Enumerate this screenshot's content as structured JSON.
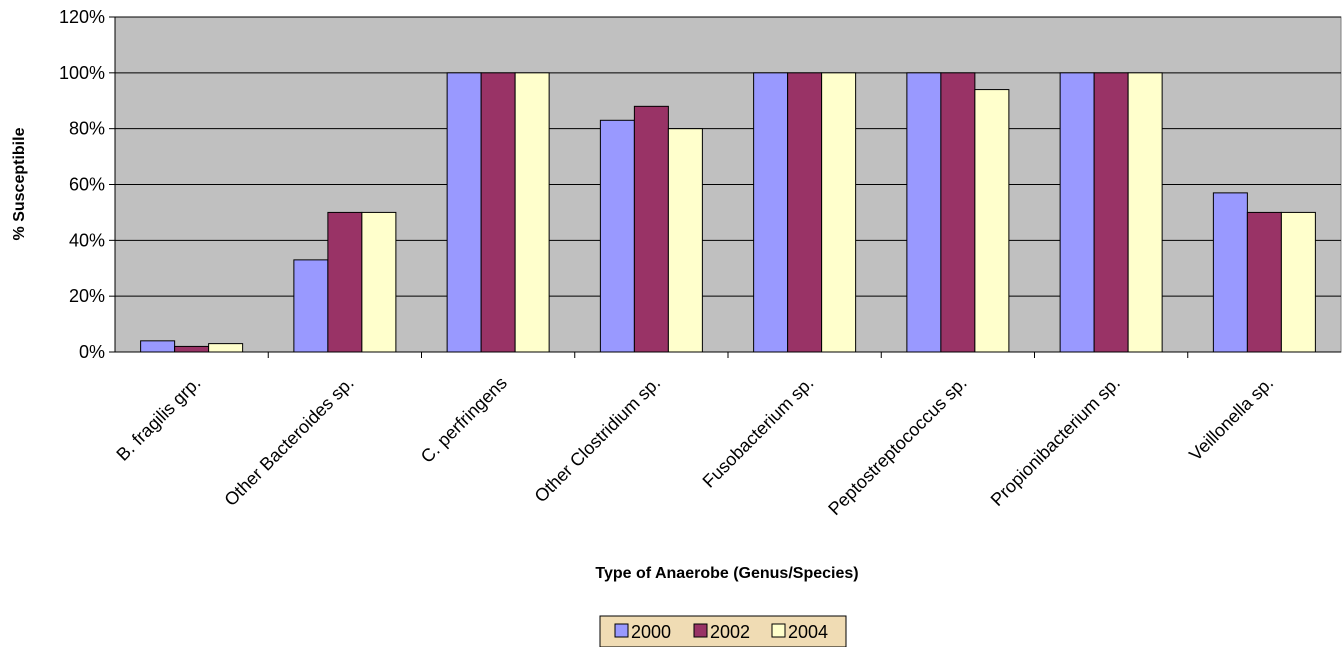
{
  "chart_data": {
    "type": "bar",
    "title": "",
    "xlabel": "Type of Anaerobe (Genus/Species)",
    "ylabel": "% Susceptibile",
    "ylim": [
      0,
      120
    ],
    "y_ticks": [
      "0%",
      "20%",
      "40%",
      "60%",
      "80%",
      "100%",
      "120%"
    ],
    "y_tick_values": [
      0,
      20,
      40,
      60,
      80,
      100,
      120
    ],
    "categories": [
      "B. fragilis grp.",
      "Other Bacteroides sp.",
      "C. perfringens",
      "Other Clostridium sp.",
      "Fusobacterium sp.",
      "Peptostreptococcus sp.",
      "Propionibacterium sp.",
      "Veillonella sp."
    ],
    "series": [
      {
        "name": "2000",
        "color": "#9999FF",
        "values": [
          4,
          33,
          100,
          83,
          100,
          100,
          100,
          57
        ]
      },
      {
        "name": "2002",
        "color": "#993366",
        "values": [
          2,
          50,
          100,
          88,
          100,
          100,
          100,
          50
        ]
      },
      {
        "name": "2004",
        "color": "#FFFFCC",
        "values": [
          3,
          50,
          100,
          80,
          100,
          94,
          100,
          50
        ]
      }
    ],
    "plot_background": "#C0C0C0",
    "legend_background": "#F0DCB4",
    "grid": true,
    "legend_position": "bottom"
  }
}
